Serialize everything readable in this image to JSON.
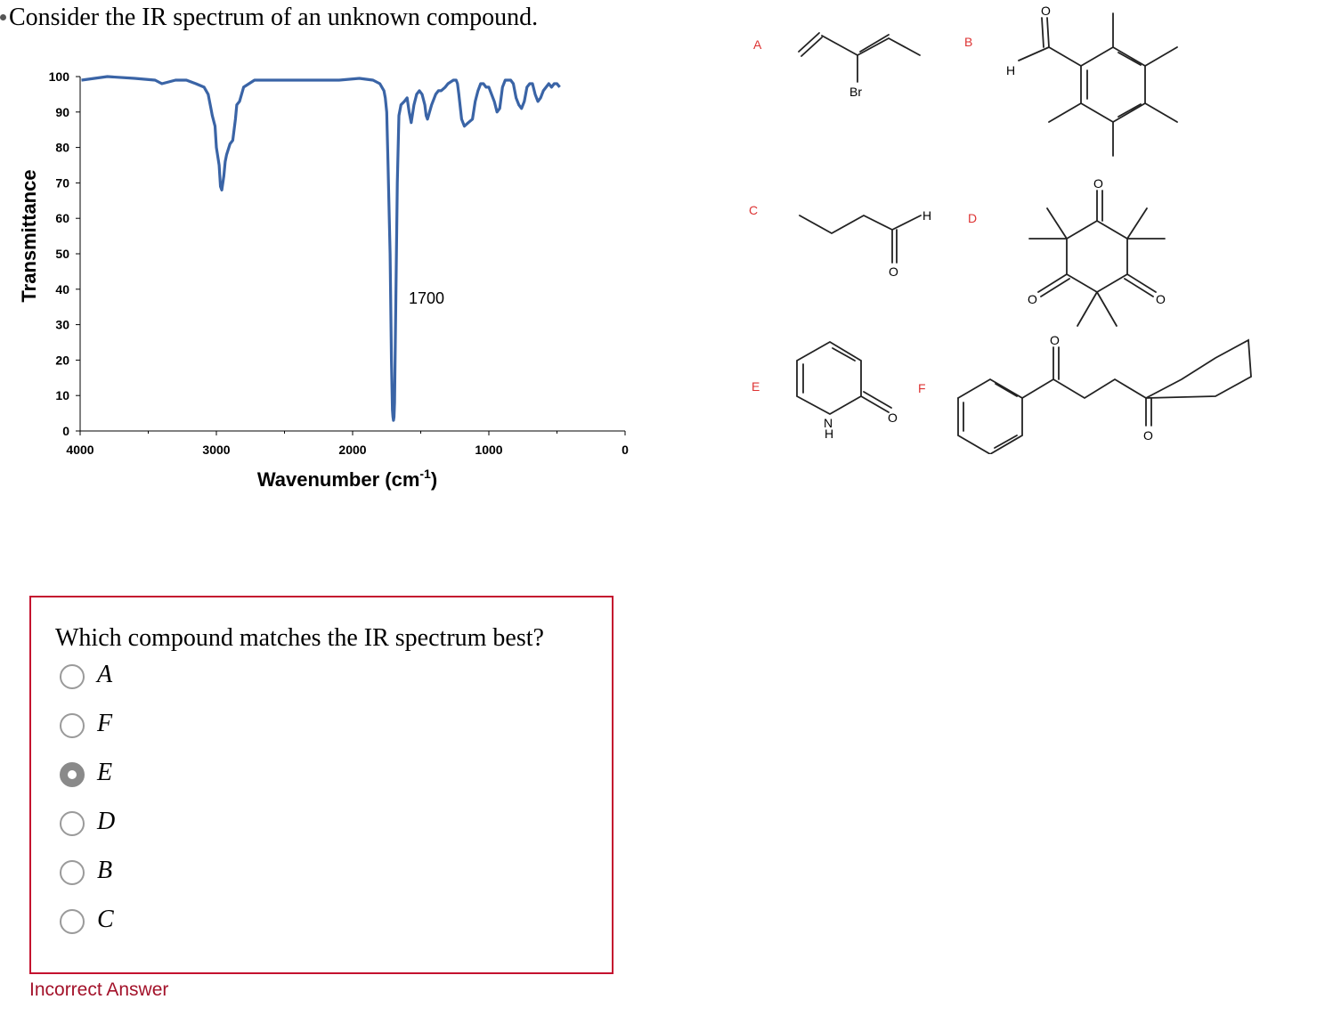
{
  "prompt": "Consider the IR spectrum of an unknown compound.",
  "chart_data": {
    "type": "line",
    "title": "",
    "xlabel": "Wavenumber (cm",
    "xlabel_sup": "-1",
    "xlabel_close": ")",
    "ylabel": "Transmittance",
    "xlim": [
      4000,
      0
    ],
    "ylim": [
      0,
      100
    ],
    "x_ticks": [
      "4000",
      "3000",
      "2000",
      "1000",
      "0"
    ],
    "y_ticks": [
      "100",
      "90",
      "80",
      "70",
      "60",
      "50",
      "40",
      "30",
      "20",
      "10",
      "0"
    ],
    "annotation": "1700",
    "color": "#3a64a6",
    "series": [
      {
        "x": [
          3990,
          3800,
          3600,
          3450,
          3400,
          3300,
          3220,
          3150,
          3090,
          3060,
          3040,
          3030,
          3010,
          3000,
          2980,
          2970,
          2960,
          2945,
          2935,
          2925,
          2900,
          2880,
          2870,
          2860,
          2850,
          2830,
          2800,
          2720,
          2500,
          2300,
          2100,
          1950,
          1850,
          1800,
          1770,
          1760,
          1750,
          1740,
          1725,
          1715,
          1708,
          1704,
          1700,
          1696,
          1692,
          1685,
          1672,
          1660,
          1645,
          1620,
          1600,
          1585,
          1570,
          1550,
          1530,
          1510,
          1490,
          1470,
          1460,
          1450,
          1420,
          1390,
          1370,
          1350,
          1320,
          1300,
          1260,
          1240,
          1230,
          1220,
          1200,
          1180,
          1150,
          1120,
          1100,
          1080,
          1060,
          1040,
          1020,
          1000,
          960,
          940,
          920,
          900,
          880,
          840,
          820,
          800,
          780,
          760,
          740,
          720,
          700,
          680,
          660,
          640,
          620,
          600,
          580,
          560,
          540,
          520,
          500,
          480
        ],
        "y": [
          99,
          100,
          99.5,
          99,
          98,
          99,
          99,
          98,
          97,
          95,
          91,
          89,
          86,
          80,
          75,
          69,
          68,
          72,
          76,
          78,
          81,
          82,
          85,
          88,
          92,
          93,
          97,
          99,
          99,
          99,
          99,
          99.5,
          99,
          98,
          96,
          94,
          90,
          75,
          50,
          20,
          6,
          4,
          3,
          4,
          8,
          30,
          70,
          89,
          92,
          93,
          94,
          90,
          87,
          92,
          95,
          96,
          95,
          92,
          89,
          88,
          92,
          95,
          96,
          96,
          97,
          98,
          99,
          99,
          98,
          95,
          88,
          86,
          87,
          88,
          93,
          96,
          98,
          98,
          97,
          97,
          93,
          90,
          91,
          97,
          99,
          99,
          98,
          94,
          92,
          91,
          93,
          97,
          98,
          98,
          95,
          93,
          94,
          96,
          97,
          98,
          97,
          98,
          98,
          97
        ]
      }
    ]
  },
  "structures": {
    "labels": [
      "A",
      "B",
      "C",
      "D",
      "E",
      "F"
    ],
    "atoms": {
      "br": "Br",
      "h": "H",
      "o": "O",
      "n": "N"
    }
  },
  "question": {
    "text": "Which compound matches the IR spectrum best?",
    "choices": [
      {
        "label": "A",
        "selected": false
      },
      {
        "label": "F",
        "selected": false
      },
      {
        "label": "E",
        "selected": true
      },
      {
        "label": "D",
        "selected": false
      },
      {
        "label": "B",
        "selected": false
      },
      {
        "label": "C",
        "selected": false
      }
    ],
    "feedback": "Incorrect Answer"
  },
  "colors": {
    "accent_error": "#c4122f",
    "feedback_text": "#a3122a",
    "spectrum_line": "#3a64a6"
  }
}
